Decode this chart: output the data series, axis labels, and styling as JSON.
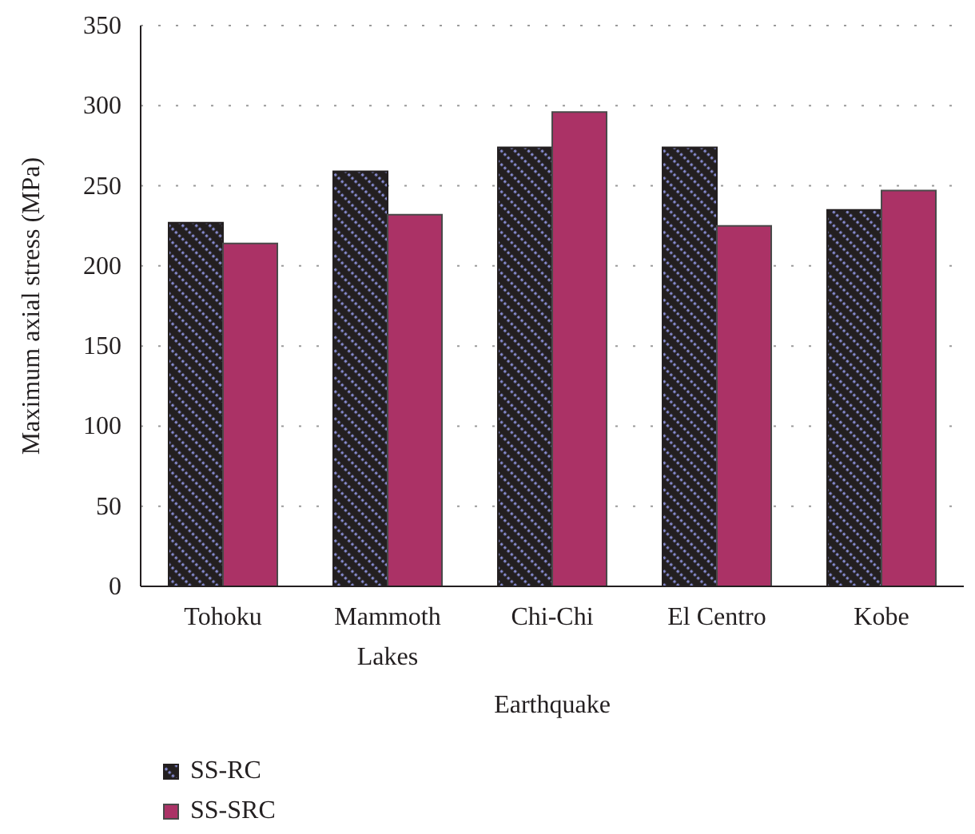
{
  "chart_data": {
    "type": "bar",
    "xlabel": "Earthquake",
    "ylabel": "Maximum axial stress (MPa)",
    "categories": [
      "Tohoku",
      "Mammoth Lakes",
      "Chi-Chi",
      "El Centro",
      "Kobe"
    ],
    "series": [
      {
        "name": "SS-RC",
        "color": "#231f20",
        "values": [
          227,
          259,
          274,
          274,
          235
        ]
      },
      {
        "name": "SS-SRC",
        "color": "#ab3266",
        "values": [
          214,
          232,
          296,
          225,
          247
        ]
      }
    ],
    "ylim": [
      0,
      350
    ],
    "yticks": [
      0,
      50,
      100,
      150,
      200,
      250,
      300,
      350
    ],
    "grid": "y",
    "legend": "bottom left"
  }
}
